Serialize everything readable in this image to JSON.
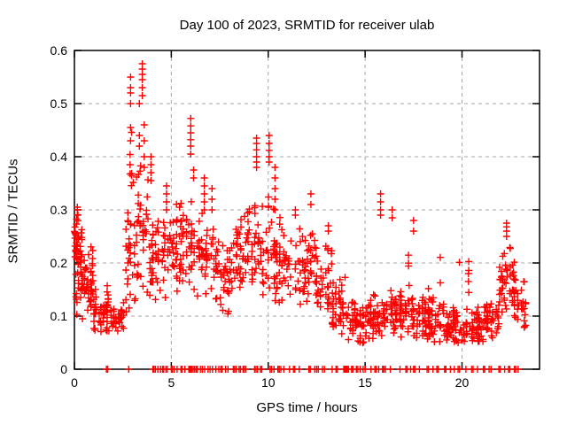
{
  "chart_data": {
    "type": "scatter",
    "title": "Day 100 of 2023, SRMTID for receiver ulab",
    "xlabel": "GPS time / hours",
    "ylabel": "SRMTID / TECUs",
    "xlim": [
      0,
      24
    ],
    "ylim": [
      0,
      0.6
    ],
    "xticks": [
      0,
      5,
      10,
      15,
      20
    ],
    "yticks": [
      0,
      0.1,
      0.2,
      0.3,
      0.4,
      0.5,
      0.6
    ],
    "ytick_labels": [
      "0",
      "0.1",
      "0.2",
      "0.3",
      "0.4",
      "0.5",
      "0.6"
    ],
    "grid": "dashed-gray-at-major-ticks",
    "legend": "none",
    "marker": {
      "symbol": "+",
      "color": "#ff0000",
      "size": 8,
      "stroke_width": 1.4
    },
    "axis_color": "#000000",
    "grid_color": "#a8a8a8",
    "background": "#ffffff",
    "seed": 7,
    "columns_format": "[hour, [SRMTID values observed in a vertical stack at that hour]]",
    "columns": [
      [
        0.15,
        [
          0.29,
          0.3,
          0.305
        ]
      ],
      [
        2.9,
        [
          0.43,
          0.455,
          0.5,
          0.52,
          0.53,
          0.55
        ]
      ],
      [
        3.35,
        [
          0.42,
          0.44,
          0.5
        ]
      ],
      [
        3.5,
        [
          0.515,
          0.53,
          0.545,
          0.555,
          0.565,
          0.575
        ]
      ],
      [
        3.6,
        [
          0.38,
          0.4,
          0.43,
          0.46
        ]
      ],
      [
        3.95,
        [
          0.355,
          0.37,
          0.385,
          0.4
        ]
      ],
      [
        4.75,
        [
          0.3,
          0.315,
          0.33,
          0.345
        ]
      ],
      [
        6.0,
        [
          0.405,
          0.42,
          0.432,
          0.445,
          0.458,
          0.472
        ]
      ],
      [
        6.15,
        [
          0.36,
          0.375
        ]
      ],
      [
        6.7,
        [
          0.3,
          0.315,
          0.33,
          0.345,
          0.36
        ]
      ],
      [
        7.1,
        [
          0.3,
          0.32,
          0.34
        ]
      ],
      [
        9.4,
        [
          0.38,
          0.39,
          0.4,
          0.413,
          0.425,
          0.435
        ]
      ],
      [
        10.05,
        [
          0.39,
          0.4,
          0.412,
          0.425,
          0.44
        ]
      ],
      [
        10.35,
        [
          0.3,
          0.32,
          0.34,
          0.36,
          0.38
        ]
      ],
      [
        11.4,
        [
          0.29,
          0.3
        ]
      ],
      [
        12.2,
        [
          0.31,
          0.33
        ]
      ],
      [
        13.1,
        [
          0.26,
          0.27
        ]
      ],
      [
        15.8,
        [
          0.29,
          0.3,
          0.315,
          0.33
        ]
      ],
      [
        16.4,
        [
          0.285,
          0.3
        ]
      ],
      [
        17.5,
        [
          0.26,
          0.28
        ]
      ],
      [
        22.3,
        [
          0.25,
          0.26,
          0.268,
          0.275
        ]
      ]
    ],
    "bands_format": "[hour_start, hour_end, value_min, value_max, point_count] — dense scatter bands",
    "bands": [
      [
        0.0,
        0.4,
        0.1,
        0.29,
        40
      ],
      [
        0.0,
        0.3,
        0.2,
        0.31,
        12
      ],
      [
        0.3,
        1.0,
        0.08,
        0.24,
        55
      ],
      [
        1.0,
        1.9,
        0.05,
        0.16,
        60
      ],
      [
        1.9,
        2.6,
        0.055,
        0.13,
        28
      ],
      [
        2.6,
        3.2,
        0.1,
        0.3,
        30
      ],
      [
        2.8,
        3.1,
        0.3,
        0.46,
        8
      ],
      [
        3.2,
        3.8,
        0.14,
        0.4,
        38
      ],
      [
        3.8,
        4.5,
        0.1,
        0.3,
        36
      ],
      [
        4.5,
        5.3,
        0.12,
        0.33,
        45
      ],
      [
        5.3,
        6.3,
        0.14,
        0.34,
        50
      ],
      [
        6.3,
        7.3,
        0.13,
        0.31,
        46
      ],
      [
        7.3,
        8.3,
        0.08,
        0.28,
        50
      ],
      [
        8.3,
        9.3,
        0.12,
        0.31,
        48
      ],
      [
        9.3,
        10.3,
        0.13,
        0.32,
        44
      ],
      [
        10.3,
        11.3,
        0.11,
        0.3,
        48
      ],
      [
        11.3,
        12.3,
        0.1,
        0.28,
        46
      ],
      [
        12.3,
        13.3,
        0.09,
        0.25,
        44
      ],
      [
        13.3,
        14.1,
        0.06,
        0.18,
        40
      ],
      [
        14.1,
        15.1,
        0.045,
        0.14,
        52
      ],
      [
        15.1,
        16.1,
        0.045,
        0.15,
        55
      ],
      [
        16.1,
        17.1,
        0.05,
        0.16,
        50
      ],
      [
        17.1,
        18.1,
        0.05,
        0.15,
        50
      ],
      [
        18.1,
        19.1,
        0.045,
        0.14,
        50
      ],
      [
        19.1,
        20.1,
        0.04,
        0.12,
        55
      ],
      [
        20.1,
        21.1,
        0.04,
        0.12,
        55
      ],
      [
        21.1,
        21.9,
        0.05,
        0.14,
        40
      ],
      [
        21.9,
        22.7,
        0.09,
        0.26,
        48
      ],
      [
        22.7,
        23.3,
        0.06,
        0.19,
        28
      ],
      [
        16.3,
        21.0,
        0.14,
        0.22,
        14
      ],
      [
        8.9,
        10.6,
        0.25,
        0.35,
        10
      ]
    ],
    "zero_times_note": "hours at which markers sit exactly on the y=0 axis line",
    "zero_times": [
      1.65,
      1.72,
      2.8,
      4.05,
      4.1,
      4.18,
      4.3,
      4.45,
      4.55,
      4.6,
      4.72,
      4.8,
      5.0,
      5.06,
      5.15,
      5.3,
      5.5,
      5.56,
      5.7,
      5.9,
      5.95,
      6.0,
      6.05,
      6.12,
      6.2,
      6.28,
      6.35,
      6.5,
      6.6,
      6.72,
      6.9,
      7.0,
      7.12,
      7.3,
      7.45,
      7.55,
      7.62,
      7.8,
      7.92,
      8.2,
      8.27,
      8.35,
      8.5,
      8.57,
      8.7,
      8.77,
      8.85,
      9.3,
      9.37,
      9.45,
      9.6,
      9.67,
      10.1,
      10.17,
      10.3,
      10.5,
      10.57,
      10.65,
      10.8,
      11.1,
      11.3,
      11.37,
      11.6,
      12.1,
      12.17,
      12.4,
      12.5,
      12.58,
      12.8,
      12.9,
      13.3,
      13.5,
      13.57,
      13.9,
      13.96,
      14.02,
      14.08,
      14.15,
      14.3,
      14.37,
      14.55,
      14.62,
      14.75,
      14.9,
      15.0,
      15.3,
      15.5,
      15.57,
      15.7,
      15.9,
      15.97,
      16.05,
      16.3,
      16.8,
      17.1,
      17.17,
      17.35,
      17.5,
      17.57,
      17.8,
      18.2,
      18.27,
      18.5,
      18.7,
      18.77,
      19.1,
      19.17,
      19.4,
      19.6,
      19.8,
      19.87,
      20.2,
      20.5,
      20.57,
      20.8,
      21.1,
      21.17,
      21.4,
      21.5,
      21.9,
      21.97,
      22.2,
      22.4,
      22.47,
      22.7,
      22.77,
      22.9
    ]
  }
}
